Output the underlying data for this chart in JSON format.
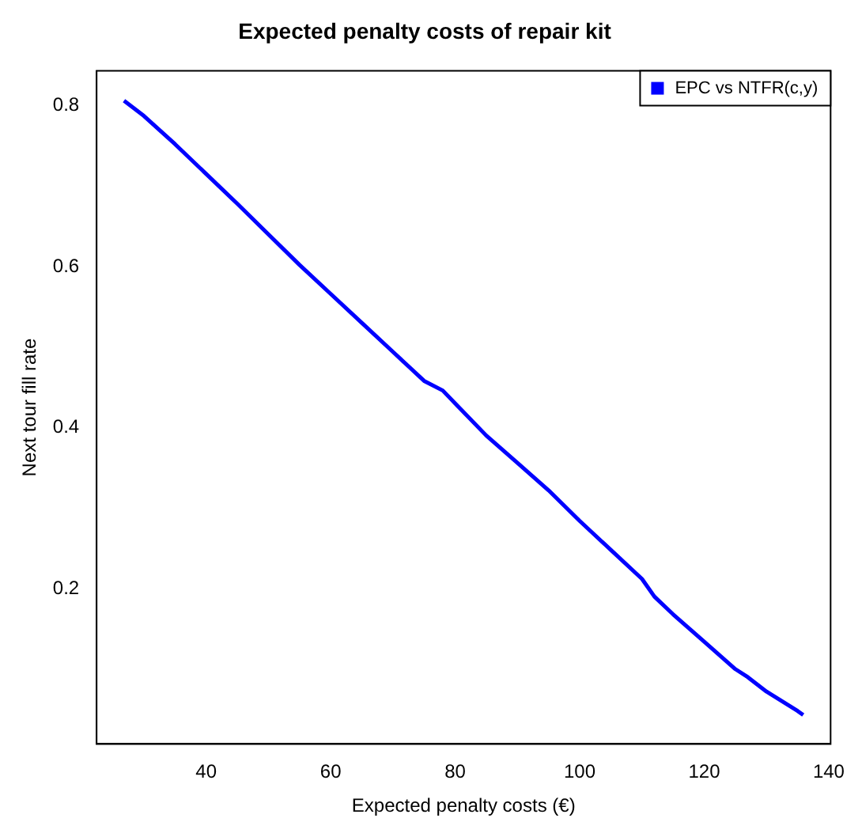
{
  "chart_data": {
    "type": "line",
    "title": "Expected penalty costs of repair kit",
    "xlabel": "Expected penalty costs (€)",
    "ylabel": "Next tour fill rate",
    "series": [
      {
        "name": "EPC vs NTFR(c,y)",
        "color": "#0000ff",
        "x": [
          26.8,
          30,
          35,
          40,
          45,
          50,
          55,
          60,
          65,
          70,
          75,
          78,
          80,
          85,
          90,
          95,
          100,
          105,
          110,
          112,
          115,
          120,
          125,
          127,
          130,
          135,
          135.9
        ],
        "values": [
          0.806,
          0.787,
          0.752,
          0.715,
          0.678,
          0.64,
          0.602,
          0.566,
          0.53,
          0.494,
          0.458,
          0.446,
          0.43,
          0.39,
          0.356,
          0.322,
          0.284,
          0.248,
          0.212,
          0.19,
          0.168,
          0.134,
          0.1,
          0.09,
          0.072,
          0.048,
          0.043
        ]
      }
    ],
    "xlim": [
      22.4,
      140.3
    ],
    "ylim": [
      0.007,
      0.843
    ],
    "xticks": [
      40,
      60,
      80,
      100,
      120,
      140
    ],
    "yticks": [
      0.2,
      0.4,
      0.6,
      0.8
    ],
    "grid": false,
    "legend": "top right",
    "marker": "none",
    "line_style": "solid"
  }
}
